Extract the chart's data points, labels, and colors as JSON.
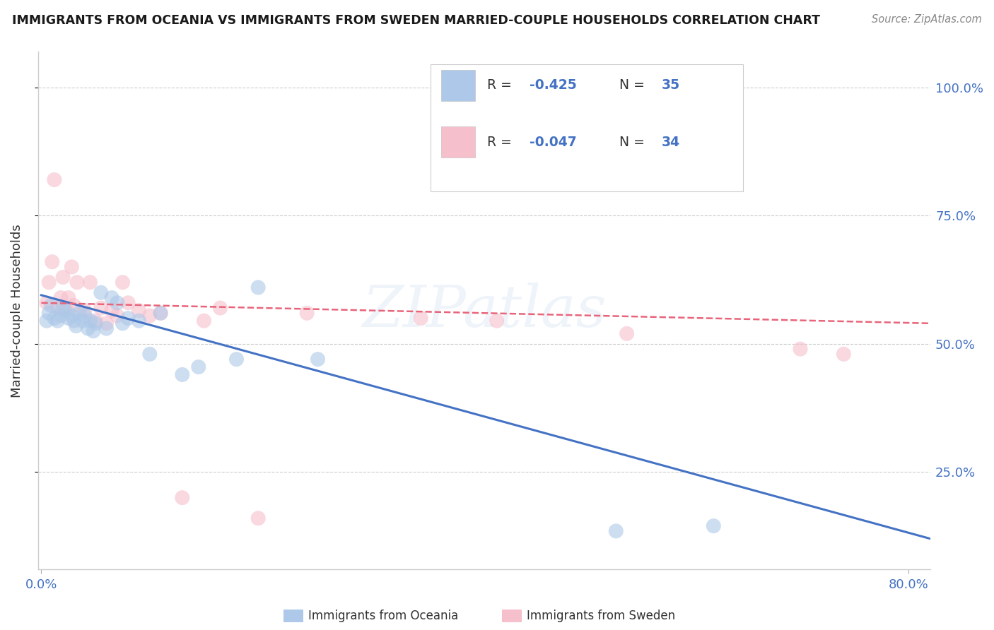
{
  "title": "IMMIGRANTS FROM OCEANIA VS IMMIGRANTS FROM SWEDEN MARRIED-COUPLE HOUSEHOLDS CORRELATION CHART",
  "source": "Source: ZipAtlas.com",
  "ylabel": "Married-couple Households",
  "xlim": [
    -0.003,
    0.82
  ],
  "ylim": [
    0.06,
    1.07
  ],
  "x_ticks": [
    0.0,
    0.8
  ],
  "x_tick_labels": [
    "0.0%",
    "80.0%"
  ],
  "y_ticks": [
    0.25,
    0.5,
    0.75,
    1.0
  ],
  "y_tick_labels": [
    "25.0%",
    "50.0%",
    "75.0%",
    "100.0%"
  ],
  "watermark": "ZIPatlas",
  "legend_r_entries": [
    {
      "r_label": "R = ",
      "r_val": "-0.425",
      "n_label": "N = ",
      "n_val": "35",
      "color": "#adc8e8"
    },
    {
      "r_label": "R = ",
      "r_val": "-0.047",
      "n_label": "N = ",
      "n_val": "34",
      "color": "#f5bfcc"
    }
  ],
  "legend_bottom": [
    {
      "label": "Immigrants from Oceania",
      "color": "#adc8e8"
    },
    {
      "label": "Immigrants from Sweden",
      "color": "#f5bfcc"
    }
  ],
  "blue_x": [
    0.005,
    0.007,
    0.009,
    0.012,
    0.015,
    0.018,
    0.02,
    0.022,
    0.025,
    0.028,
    0.03,
    0.032,
    0.035,
    0.038,
    0.04,
    0.043,
    0.045,
    0.048,
    0.05,
    0.055,
    0.06,
    0.065,
    0.07,
    0.075,
    0.08,
    0.09,
    0.1,
    0.11,
    0.13,
    0.145,
    0.18,
    0.2,
    0.255,
    0.53,
    0.62
  ],
  "blue_y": [
    0.545,
    0.56,
    0.575,
    0.55,
    0.545,
    0.555,
    0.57,
    0.565,
    0.55,
    0.555,
    0.545,
    0.535,
    0.56,
    0.545,
    0.555,
    0.53,
    0.545,
    0.525,
    0.54,
    0.6,
    0.53,
    0.59,
    0.58,
    0.54,
    0.55,
    0.545,
    0.48,
    0.56,
    0.44,
    0.455,
    0.47,
    0.61,
    0.47,
    0.135,
    0.145
  ],
  "pink_x": [
    0.005,
    0.007,
    0.01,
    0.012,
    0.015,
    0.018,
    0.02,
    0.023,
    0.025,
    0.028,
    0.03,
    0.033,
    0.04,
    0.045,
    0.05,
    0.055,
    0.06,
    0.065,
    0.07,
    0.075,
    0.08,
    0.09,
    0.1,
    0.11,
    0.13,
    0.15,
    0.165,
    0.2,
    0.245,
    0.35,
    0.42,
    0.54,
    0.7,
    0.74
  ],
  "pink_y": [
    0.58,
    0.62,
    0.66,
    0.82,
    0.57,
    0.59,
    0.63,
    0.57,
    0.59,
    0.65,
    0.575,
    0.62,
    0.565,
    0.62,
    0.545,
    0.57,
    0.54,
    0.565,
    0.555,
    0.62,
    0.58,
    0.565,
    0.555,
    0.56,
    0.2,
    0.545,
    0.57,
    0.16,
    0.56,
    0.55,
    0.545,
    0.52,
    0.49,
    0.48
  ],
  "blue_line_color": "#4472c4",
  "pink_line_color": "#e8647a",
  "blue_line_x": [
    0.0,
    0.82
  ],
  "blue_line_y": [
    0.595,
    0.12
  ],
  "pink_line_x": [
    0.0,
    0.82
  ],
  "pink_line_y": [
    0.58,
    0.54
  ],
  "grid_color": "#cccccc",
  "tick_color": "#4472c4",
  "background": "#ffffff",
  "dot_size": 230,
  "dot_alpha": 0.6,
  "title_fontsize": 12.5,
  "source_fontsize": 10.5,
  "axis_fontsize": 13,
  "rn_fontsize": 13.5
}
